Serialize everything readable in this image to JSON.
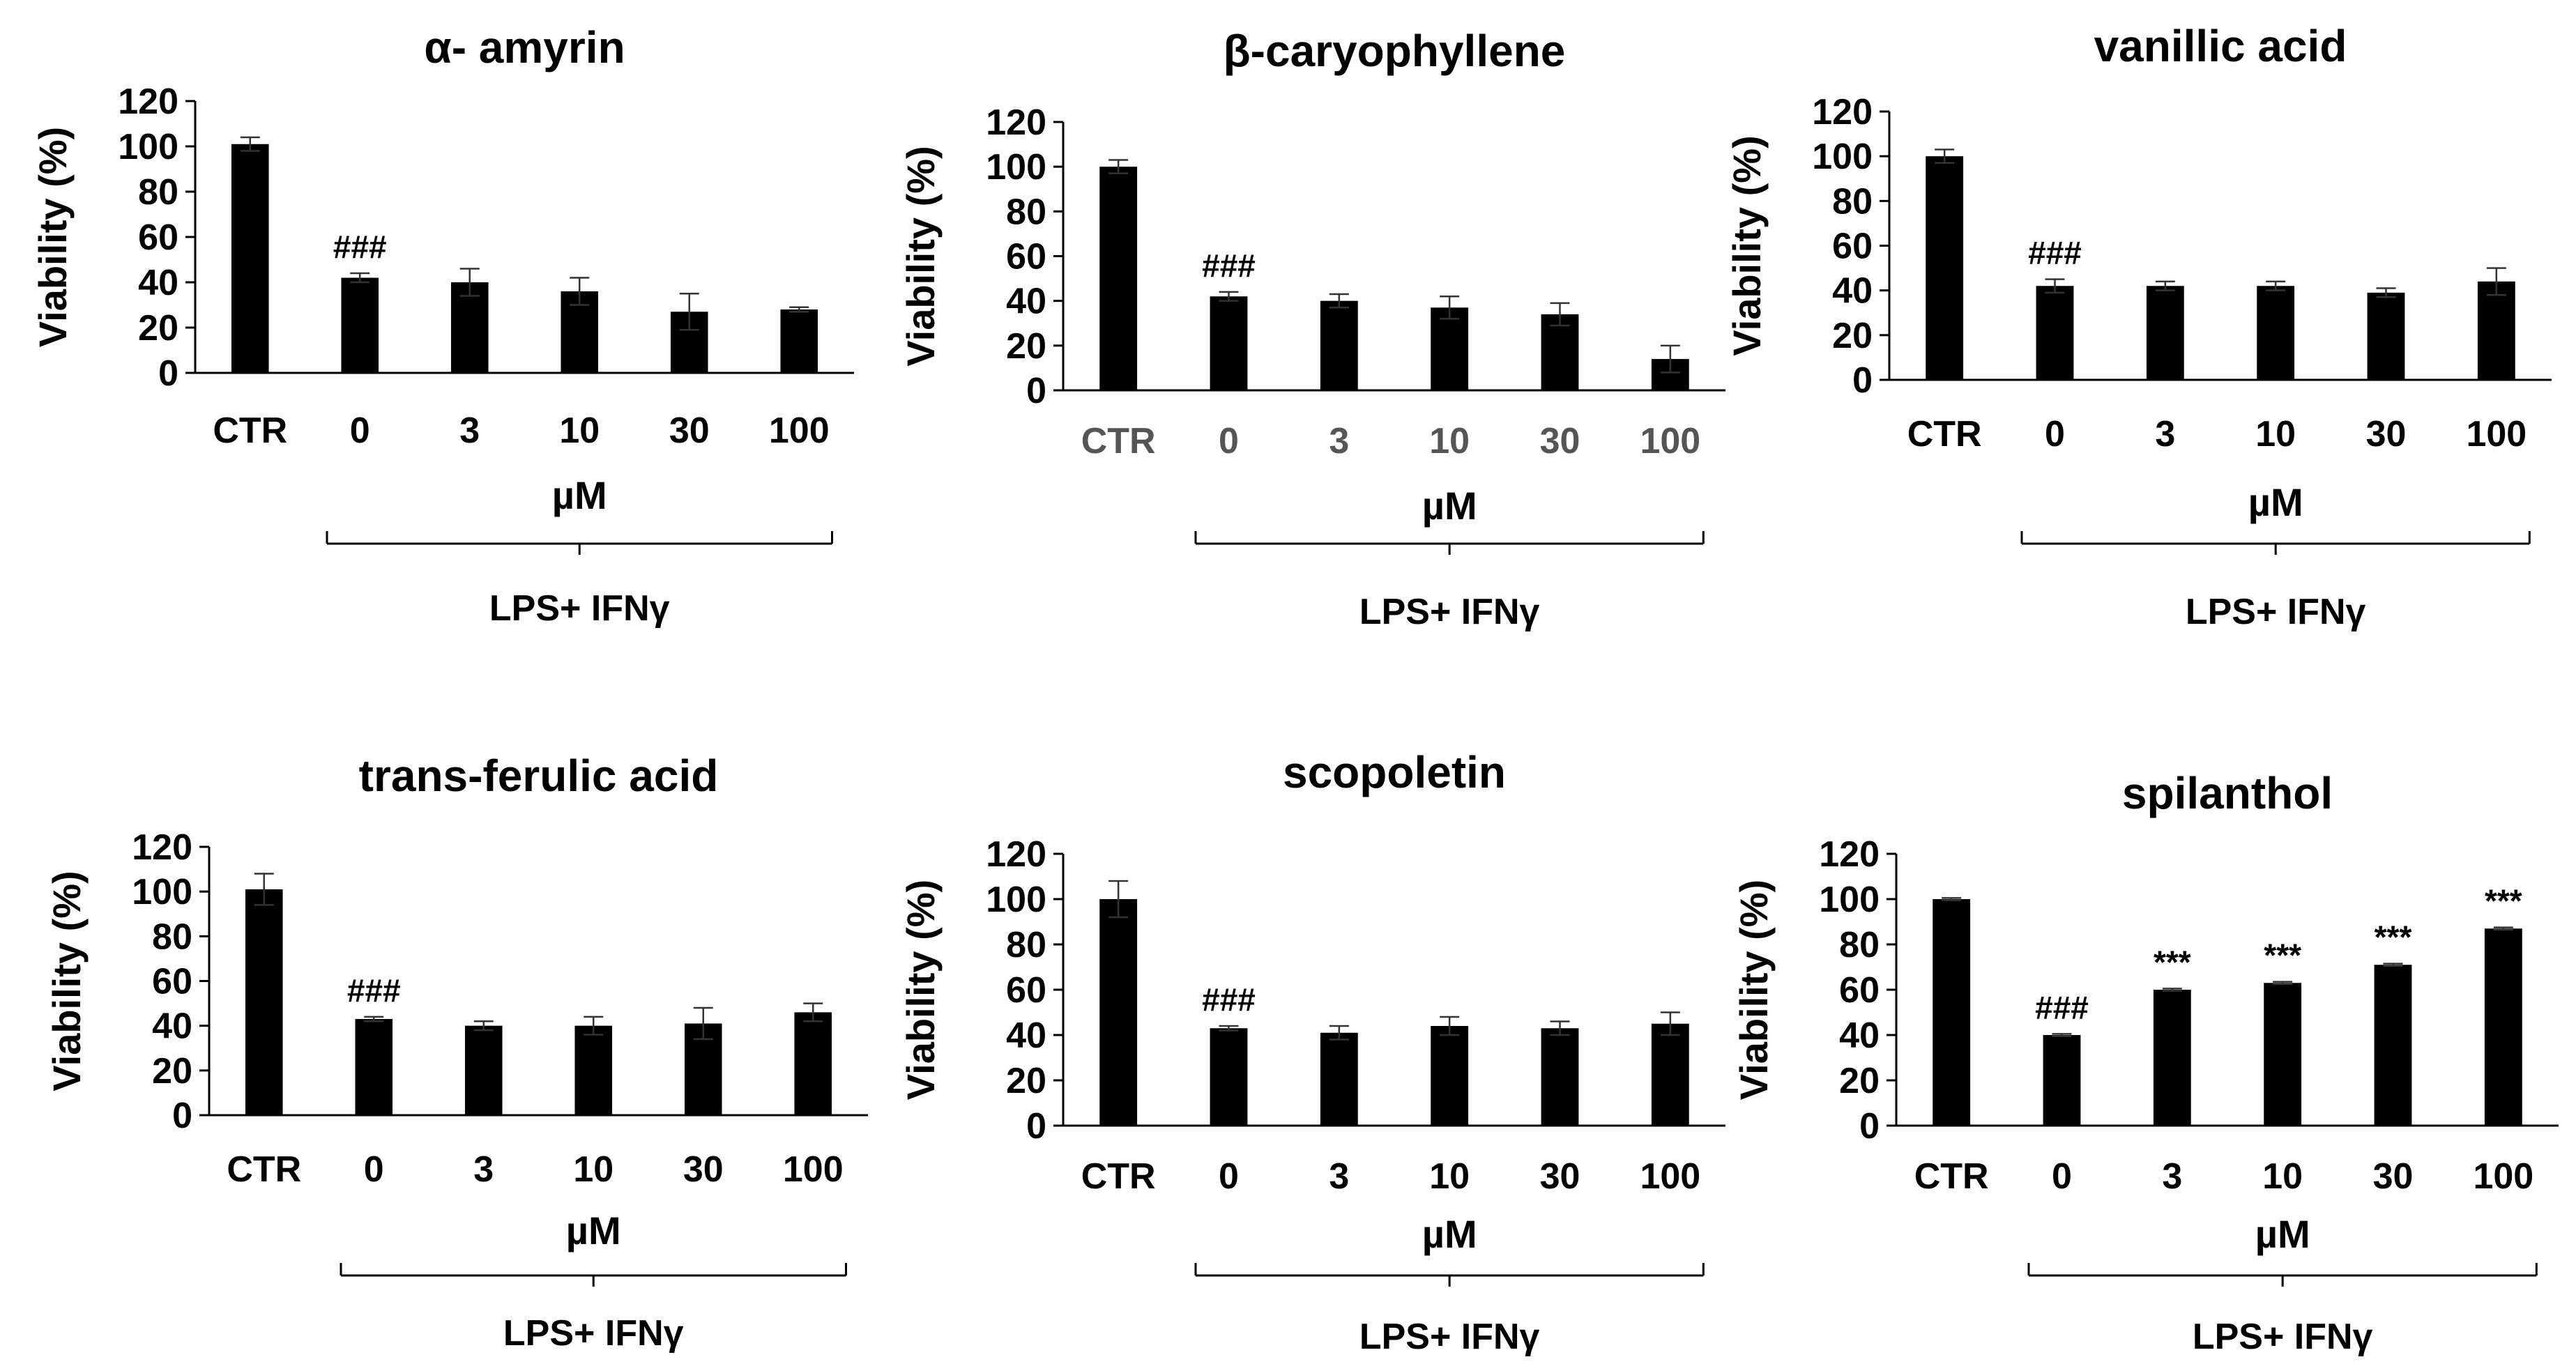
{
  "chart_data": [
    {
      "type": "bar",
      "title": "α- amyrin",
      "ylabel": "Viability (%)",
      "ylim": [
        0,
        120
      ],
      "yticks": [
        "0",
        "20",
        "40",
        "60",
        "80",
        "100",
        "120"
      ],
      "categories": [
        "CTR",
        "0",
        "3",
        "10",
        "30",
        "100"
      ],
      "values": [
        101,
        42,
        40,
        36,
        27,
        28
      ],
      "errors": [
        3,
        2,
        6,
        6,
        8,
        1
      ],
      "annotations": [
        "",
        "###",
        "",
        "",
        "",
        ""
      ],
      "unit_label": "µM",
      "group_label": "LPS+ IFNγ",
      "grey_ticks": false
    },
    {
      "type": "bar",
      "title": "β-caryophyllene",
      "ylabel": "Viability (%)",
      "ylim": [
        0,
        120
      ],
      "yticks": [
        "0",
        "20",
        "40",
        "60",
        "80",
        "100",
        "120"
      ],
      "categories": [
        "CTR",
        "0",
        "3",
        "10",
        "30",
        "100"
      ],
      "values": [
        100,
        42,
        40,
        37,
        34,
        14
      ],
      "errors": [
        3,
        2,
        3,
        5,
        5,
        6
      ],
      "annotations": [
        "",
        "###",
        "",
        "",
        "",
        ""
      ],
      "unit_label": "µM",
      "group_label": "LPS+ IFNγ",
      "grey_ticks": true
    },
    {
      "type": "bar",
      "title": "vanillic acid",
      "ylabel": "Viability (%)",
      "ylim": [
        0,
        120
      ],
      "yticks": [
        "0",
        "20",
        "40",
        "60",
        "80",
        "100",
        "120"
      ],
      "categories": [
        "CTR",
        "0",
        "3",
        "10",
        "30",
        "100"
      ],
      "values": [
        100,
        42,
        42,
        42,
        39,
        44
      ],
      "errors": [
        3,
        3,
        2,
        2,
        2,
        6
      ],
      "annotations": [
        "",
        "###",
        "",
        "",
        "",
        ""
      ],
      "unit_label": "µM",
      "group_label": "LPS+ IFNγ",
      "grey_ticks": false
    },
    {
      "type": "bar",
      "title": "trans-ferulic acid",
      "ylabel": "Viability (%)",
      "ylim": [
        0,
        120
      ],
      "yticks": [
        "0",
        "20",
        "40",
        "60",
        "80",
        "100",
        "120"
      ],
      "categories": [
        "CTR",
        "0",
        "3",
        "10",
        "30",
        "100"
      ],
      "values": [
        101,
        43,
        40,
        40,
        41,
        46
      ],
      "errors": [
        7,
        1,
        2,
        4,
        7,
        4
      ],
      "annotations": [
        "",
        "###",
        "",
        "",
        "",
        ""
      ],
      "unit_label": "µM",
      "group_label": "LPS+ IFNγ",
      "grey_ticks": false
    },
    {
      "type": "bar",
      "title": "scopoletin",
      "ylabel": "Viability (%)",
      "ylim": [
        0,
        120
      ],
      "yticks": [
        "0",
        "20",
        "40",
        "60",
        "80",
        "100",
        "120"
      ],
      "categories": [
        "CTR",
        "0",
        "3",
        "10",
        "30",
        "100"
      ],
      "values": [
        100,
        43,
        41,
        44,
        43,
        45
      ],
      "errors": [
        8,
        1,
        3,
        4,
        3,
        5
      ],
      "annotations": [
        "",
        "###",
        "",
        "",
        "",
        ""
      ],
      "unit_label": "µM",
      "group_label": "LPS+ IFNγ",
      "grey_ticks": false
    },
    {
      "type": "bar",
      "title": "spilanthol",
      "ylabel": "Viability (%)",
      "ylim": [
        0,
        120
      ],
      "yticks": [
        "0",
        "20",
        "40",
        "60",
        "80",
        "100",
        "120"
      ],
      "categories": [
        "CTR",
        "0",
        "3",
        "10",
        "30",
        "100"
      ],
      "values": [
        100,
        40,
        60,
        63,
        71,
        87
      ],
      "errors": [
        0.5,
        0.5,
        0.5,
        0.5,
        0.5,
        0.5
      ],
      "annotations": [
        "",
        "###",
        "***",
        "***",
        "***",
        "***"
      ],
      "unit_label": "µM",
      "group_label": "LPS+ IFNγ",
      "grey_ticks": false
    }
  ]
}
